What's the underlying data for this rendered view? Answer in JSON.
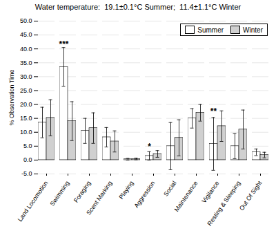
{
  "chart_data": {
    "type": "bar",
    "title": "Water temperature:  19.1±0.1°C Summer;  11.4±1.1°C Winter",
    "ylabel": "% Observation Time",
    "categories": [
      "Land Locomotion",
      "Swimming",
      "Foraging",
      "Scent Marking",
      "Playing",
      "Aggression",
      "Social",
      "Maintenance",
      "Vigilance",
      "Resting & Sleeping",
      "Out Of Sight"
    ],
    "series": [
      {
        "name": "Summer",
        "color": "#ffffff",
        "values": [
          13.5,
          33.5,
          10.5,
          8.2,
          0.3,
          1.5,
          5.0,
          15.0,
          5.8,
          5.0,
          2.8
        ],
        "errors": [
          5.5,
          7.0,
          4.5,
          3.5,
          0.3,
          1.5,
          8.5,
          3.5,
          9.5,
          4.5,
          1.2
        ]
      },
      {
        "name": "Winter",
        "color": "#d0d0d0",
        "values": [
          15.2,
          14.0,
          11.5,
          6.7,
          0.4,
          2.2,
          8.0,
          17.0,
          12.2,
          11.0,
          1.8
        ],
        "errors": [
          6.5,
          7.0,
          5.5,
          3.8,
          0.3,
          1.2,
          6.5,
          3.0,
          5.5,
          7.0,
          1.0
        ]
      }
    ],
    "ylim": [
      -5,
      50
    ],
    "yticks": [
      {
        "value": -5,
        "label": "-5.0"
      },
      {
        "value": 0,
        "label": "0.0"
      },
      {
        "value": 5,
        "label": "5.0"
      },
      {
        "value": 10,
        "label": "10.0"
      },
      {
        "value": 15,
        "label": "15.0"
      },
      {
        "value": 20,
        "label": "20.0"
      },
      {
        "value": 25,
        "label": "25.0"
      },
      {
        "value": 30,
        "label": "30.0"
      },
      {
        "value": 35,
        "label": "35.0"
      },
      {
        "value": 40,
        "label": "40.0"
      },
      {
        "value": 45,
        "label": "45.0"
      },
      {
        "value": 50,
        "label": "50.0"
      }
    ],
    "grid": true,
    "legend": "upper right",
    "annotations": [
      {
        "text": "***",
        "category": "Swimming",
        "series": "Summer",
        "y": 40.5
      },
      {
        "text": "*",
        "category": "Aggression",
        "series": "Summer",
        "y": 3.5
      },
      {
        "text": "**",
        "category": "Vigilance",
        "series": "Summer",
        "y": 16.3
      }
    ]
  }
}
